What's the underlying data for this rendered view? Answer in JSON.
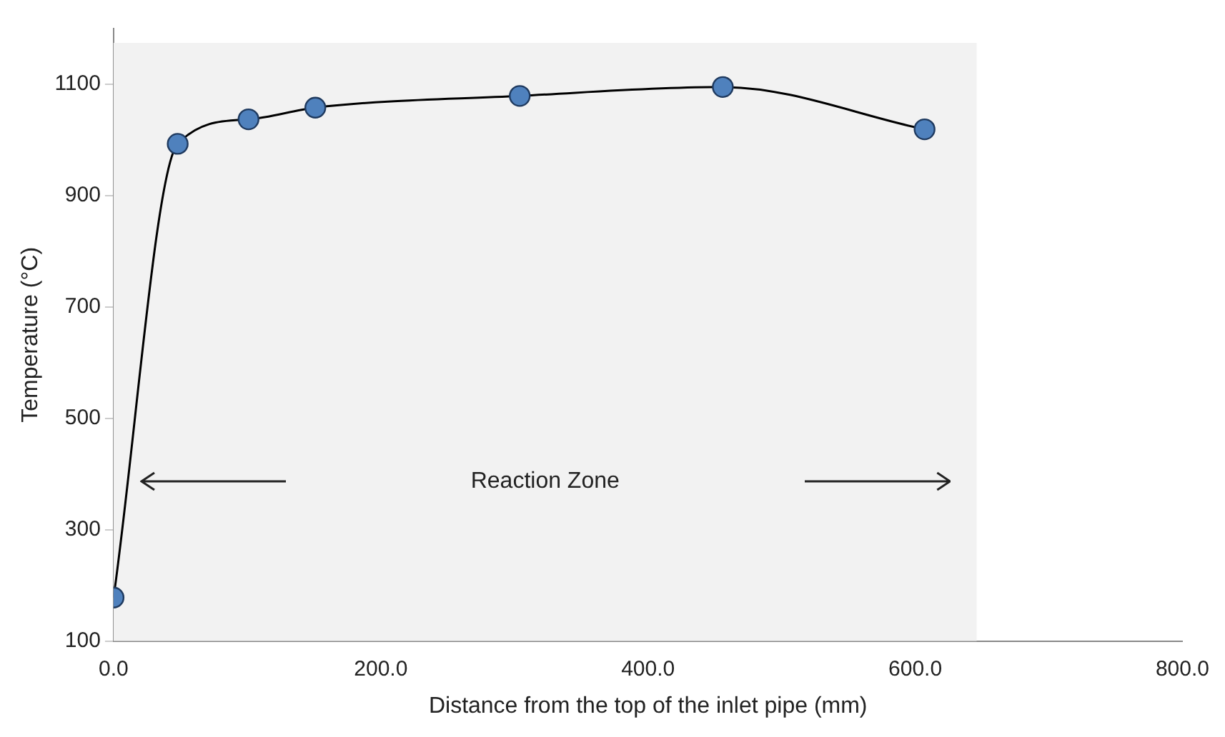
{
  "chart_data": {
    "type": "line",
    "xlabel": "Distance from the top of the inlet pipe (mm)",
    "ylabel": "Temperature (°C)",
    "series": [
      {
        "color": "#4f81bd",
        "x": [
          0,
          48,
          101,
          151,
          304,
          456,
          607
        ],
        "values": [
          178,
          993,
          1037,
          1058,
          1079,
          1095,
          1019
        ]
      }
    ],
    "xlim": [
      0,
      800
    ],
    "xticks": [
      {
        "value": 0,
        "label": "0.0"
      },
      {
        "value": 200,
        "label": "200.0"
      },
      {
        "value": 400,
        "label": "400.0"
      },
      {
        "value": 600,
        "label": "600.0"
      },
      {
        "value": 800,
        "label": "800.0"
      }
    ],
    "ylim": [
      100,
      1200
    ],
    "yticks": [
      100,
      300,
      500,
      700,
      900,
      1100
    ],
    "bands": [
      {
        "axis": "x",
        "from": 0,
        "to": 646,
        "label": "Reaction Zone",
        "color": "#f2f2f2"
      }
    ],
    "grid": false,
    "legend": false,
    "marker": "circle",
    "line_style": "solid"
  }
}
